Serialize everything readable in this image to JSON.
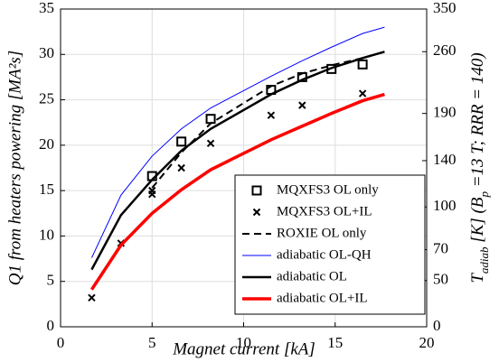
{
  "chart_data": {
    "type": "line",
    "xlabel": "Magnet current [kA]",
    "ylabel": "Q1 from heaters powering [MA²s]",
    "y2label": [
      {
        "text": "T"
      },
      {
        "text": "adiab",
        "sub": true
      },
      {
        "text": " [K] (B"
      },
      {
        "text": "p",
        "sub": true
      },
      {
        "text": " =13 T; RRR = 140)"
      }
    ],
    "xlim": [
      0,
      20
    ],
    "xticks": [
      0,
      5,
      10,
      15,
      20
    ],
    "ylim": [
      0,
      35
    ],
    "yticks": [
      0,
      5,
      10,
      15,
      20,
      25,
      30,
      35
    ],
    "y2ticks": [
      0,
      50,
      70,
      100,
      140,
      190,
      260,
      350
    ],
    "y2ticks_at_y": [
      0,
      5.1,
      8.5,
      13.2,
      18.3,
      23.5,
      30.3,
      35
    ],
    "grid": true,
    "legend": "lower right",
    "series": [
      {
        "name": "MQXFS3 OL only",
        "color": "#000000",
        "marker": "square",
        "line": null,
        "x": [
          5,
          6.6,
          8.2,
          11.5,
          13.2,
          14.8,
          16.5
        ],
        "values": [
          16.6,
          20.4,
          22.9,
          26.1,
          27.5,
          28.4,
          28.9
        ]
      },
      {
        "name": "MQXFS3 OL+IL",
        "color": "#000000",
        "marker": "x",
        "line": null,
        "x": [
          1.7,
          3.3,
          5,
          5,
          6.6,
          8.2,
          11.5,
          13.2,
          16.5
        ],
        "values": [
          3.2,
          9.2,
          14.6,
          15.0,
          17.5,
          20.2,
          23.3,
          24.4,
          25.7
        ]
      },
      {
        "name": "ROXIE OL only",
        "color": "#000000",
        "marker": null,
        "line": "dashed",
        "linewidth": 2,
        "x": [
          5,
          6.6,
          8.2,
          11.5,
          13.2,
          14.8,
          16.5
        ],
        "values": [
          15.3,
          19.2,
          22.4,
          26.5,
          27.9,
          28.8,
          29.6
        ]
      },
      {
        "name": "adiabatic OL-QH",
        "color": "#0000ff",
        "marker": null,
        "line": "solid",
        "linewidth": 1,
        "x": [
          1.7,
          3.3,
          5,
          6.6,
          8.2,
          11.5,
          13.2,
          14.8,
          16.5,
          17.7
        ],
        "values": [
          7.6,
          14.5,
          18.8,
          21.8,
          24.1,
          27.6,
          29.3,
          30.8,
          32.3,
          33.0
        ]
      },
      {
        "name": "adiabatic OL",
        "color": "#000000",
        "marker": null,
        "line": "solid",
        "linewidth": 2.5,
        "x": [
          1.7,
          3.3,
          5,
          6.6,
          8.2,
          11.5,
          13.2,
          14.8,
          16.5,
          17.7
        ],
        "values": [
          6.3,
          12.3,
          16.2,
          19.4,
          21.8,
          25.6,
          27.2,
          28.5,
          29.6,
          30.3
        ]
      },
      {
        "name": "adiabatic OL+IL",
        "color": "#ff0000",
        "marker": null,
        "line": "solid",
        "linewidth": 3.5,
        "x": [
          1.7,
          3.3,
          5,
          6.6,
          8.2,
          11.5,
          13.2,
          14.8,
          16.5,
          17.7
        ],
        "values": [
          4.1,
          9.0,
          12.5,
          15.1,
          17.3,
          20.6,
          22.1,
          23.5,
          24.9,
          25.6
        ]
      }
    ]
  }
}
